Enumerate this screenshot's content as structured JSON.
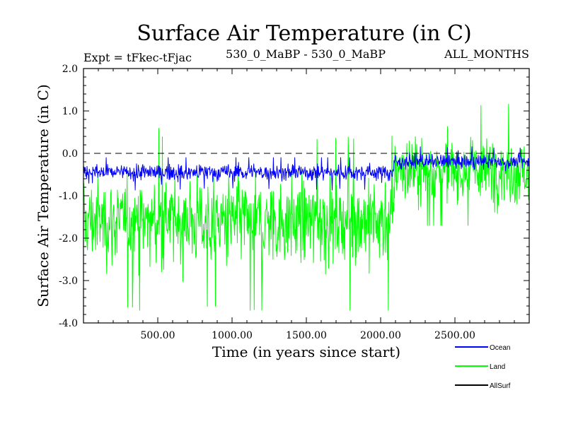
{
  "chart_data": {
    "type": "line",
    "title": "Surface Air Temperature (in C)",
    "subtitle_left": "Expt = tFkec-tFjac",
    "subtitle_center": "530_0_MaBP - 530_0_MaBP",
    "subtitle_right": "ALL_MONTHS",
    "xlabel": "Time (in years since start)",
    "ylabel": "Surface Air Temperature (in C)",
    "xlim": [
      0,
      3000
    ],
    "ylim": [
      -4.0,
      2.0
    ],
    "xticks": [
      500,
      1000,
      1500,
      2000,
      2500
    ],
    "xtick_labels": [
      "500.00",
      "1000.00",
      "1500.00",
      "2000.00",
      "2500.00"
    ],
    "yticks": [
      -4.0,
      -3.0,
      -2.0,
      -1.0,
      0.0,
      1.0,
      2.0
    ],
    "ytick_labels": [
      "-4.0",
      "-3.0",
      "-2.0",
      "-1.0",
      "0.0",
      "1.0",
      "2.0"
    ],
    "reference_line": {
      "y": 0.0,
      "style": "dashed"
    },
    "grid": false,
    "legend_position": "bottom-right, outside plot",
    "series": [
      {
        "name": "Land",
        "color": "#00ff00",
        "segments": [
          {
            "x_range": [
              0,
              2090
            ],
            "mean": -1.6,
            "min": -3.7,
            "max": 0.7
          },
          {
            "x_range": [
              2090,
              3000
            ],
            "mean": -0.4,
            "min": -1.7,
            "max": 1.75
          }
        ]
      },
      {
        "name": "Ocean",
        "color": "#0000ff",
        "segments": [
          {
            "x_range": [
              0,
              2090
            ],
            "mean": -0.45,
            "min": -0.95,
            "max": -0.1
          },
          {
            "x_range": [
              2090,
              3000
            ],
            "mean": -0.2,
            "min": -0.55,
            "max": 0.2
          }
        ]
      },
      {
        "name": "AllSurf",
        "color": "#000000",
        "segments": []
      }
    ]
  }
}
